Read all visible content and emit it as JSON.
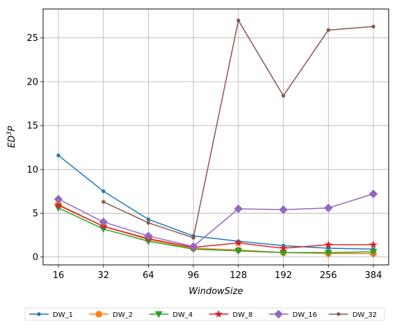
{
  "chart_data": {
    "type": "line",
    "title": "",
    "xlabel": "WindowSize",
    "ylabel_base": "ED",
    "ylabel_sup": "3",
    "ylabel_tail": "P",
    "categories": [
      "16",
      "32",
      "64",
      "96",
      "128",
      "192",
      "256",
      "384"
    ],
    "ylim": [
      -0.9,
      28.3
    ],
    "yticks": [
      0,
      5,
      10,
      15,
      20,
      25
    ],
    "grid": true,
    "legend_position": "bottom",
    "series": [
      {
        "name": "DW_1",
        "color": "#1f77b4",
        "marker": "circle-small",
        "values": [
          11.6,
          7.5,
          4.3,
          2.4,
          1.8,
          1.3,
          1.0,
          0.9
        ]
      },
      {
        "name": "DW_2",
        "color": "#ff7f0e",
        "marker": "circle",
        "values": [
          6.0,
          3.5,
          2.0,
          1.0,
          0.8,
          0.5,
          0.4,
          0.4
        ]
      },
      {
        "name": "DW_4",
        "color": "#2ca02c",
        "marker": "triangle-down",
        "values": [
          5.6,
          3.2,
          1.8,
          0.9,
          0.7,
          0.5,
          0.5,
          0.6
        ]
      },
      {
        "name": "DW_8",
        "color": "#d62728",
        "marker": "star",
        "values": [
          5.9,
          3.5,
          2.1,
          1.1,
          1.6,
          1.0,
          1.4,
          1.4
        ]
      },
      {
        "name": "DW_16",
        "color": "#9467bd",
        "marker": "diamond",
        "values": [
          6.6,
          4.0,
          2.4,
          1.2,
          5.5,
          5.4,
          5.6,
          7.2
        ]
      },
      {
        "name": "DW_32",
        "color": "#8c564b",
        "marker": "circle-small",
        "values": [
          null,
          6.3,
          3.9,
          2.2,
          27.0,
          18.4,
          25.9,
          26.3
        ]
      }
    ]
  }
}
